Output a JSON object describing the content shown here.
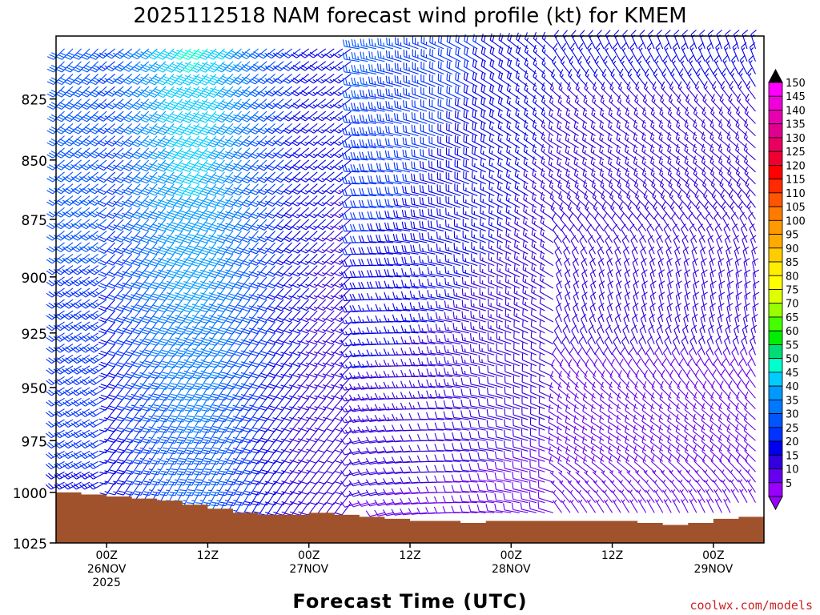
{
  "chart_data": {
    "type": "wind_barb_time_height",
    "title": "2025112518 NAM forecast wind profile (kt) for KMEM",
    "xlabel": "Forecast Time (UTC)",
    "credit": "coolwx.com/models",
    "x_ticks": [
      {
        "hour": 6,
        "label1": "00Z",
        "label2": "26NOV",
        "label3": "2025"
      },
      {
        "hour": 18,
        "label1": "12Z",
        "label2": "",
        "label3": ""
      },
      {
        "hour": 30,
        "label1": "00Z",
        "label2": "27NOV",
        "label3": ""
      },
      {
        "hour": 42,
        "label1": "12Z",
        "label2": "",
        "label3": ""
      },
      {
        "hour": 54,
        "label1": "00Z",
        "label2": "28NOV",
        "label3": ""
      },
      {
        "hour": 66,
        "label1": "12Z",
        "label2": "",
        "label3": ""
      },
      {
        "hour": 78,
        "label1": "00Z",
        "label2": "29NOV",
        "label3": ""
      }
    ],
    "xlim": [
      0,
      84
    ],
    "y_ticks": [
      825,
      850,
      875,
      900,
      925,
      950,
      975,
      1000,
      1025
    ],
    "ylim": [
      1025,
      800
    ],
    "yscale": "log-pressure (hPa)",
    "colorbar": {
      "levels": [
        150,
        145,
        140,
        135,
        130,
        125,
        120,
        115,
        110,
        105,
        100,
        95,
        90,
        85,
        80,
        75,
        70,
        65,
        60,
        55,
        50,
        45,
        40,
        35,
        30,
        25,
        20,
        15,
        10,
        5
      ],
      "colors": [
        "#ff00ff",
        "#f000d8",
        "#e800b0",
        "#e00090",
        "#e80060",
        "#f00030",
        "#ff0000",
        "#ff2a00",
        "#ff5500",
        "#ff7a00",
        "#ff9900",
        "#ffaa00",
        "#ffcc00",
        "#ffee00",
        "#ffff00",
        "#ddff00",
        "#99ff00",
        "#44ff00",
        "#00ee00",
        "#00dd77",
        "#00ffcc",
        "#00ccff",
        "#0099ff",
        "#0077ff",
        "#0055ff",
        "#0033ff",
        "#0000ee",
        "#3300dd",
        "#6600ee",
        "#9900ff"
      ],
      "top_color": "#000000",
      "bottom_color": "#9900ff"
    },
    "surface_pressure": {
      "hours": [
        0,
        3,
        6,
        9,
        12,
        15,
        18,
        21,
        24,
        27,
        30,
        33,
        36,
        39,
        42,
        45,
        48,
        51,
        54,
        57,
        60,
        63,
        66,
        69,
        72,
        75,
        78,
        81,
        84
      ],
      "hpa": [
        1000,
        1001,
        1002,
        1003,
        1004,
        1006,
        1008,
        1010,
        1011,
        1011,
        1010,
        1011,
        1012,
        1013,
        1014,
        1014,
        1015,
        1014,
        1014,
        1014,
        1014,
        1014,
        1014,
        1015,
        1016,
        1015,
        1013,
        1012,
        1011
      ]
    },
    "ground_color": "#a0522d",
    "barbs": {
      "hours_step": 1,
      "pressure_step_hpa": 5,
      "note": "Wind barbs (kt); speeds peak ~40-45 kt near 830-880 hPa around 12Z-24Z 26NOV and 12Z 27NOV, weakening to 5-15 kt late in period with veering to northerly/northwesterly flow."
    }
  }
}
